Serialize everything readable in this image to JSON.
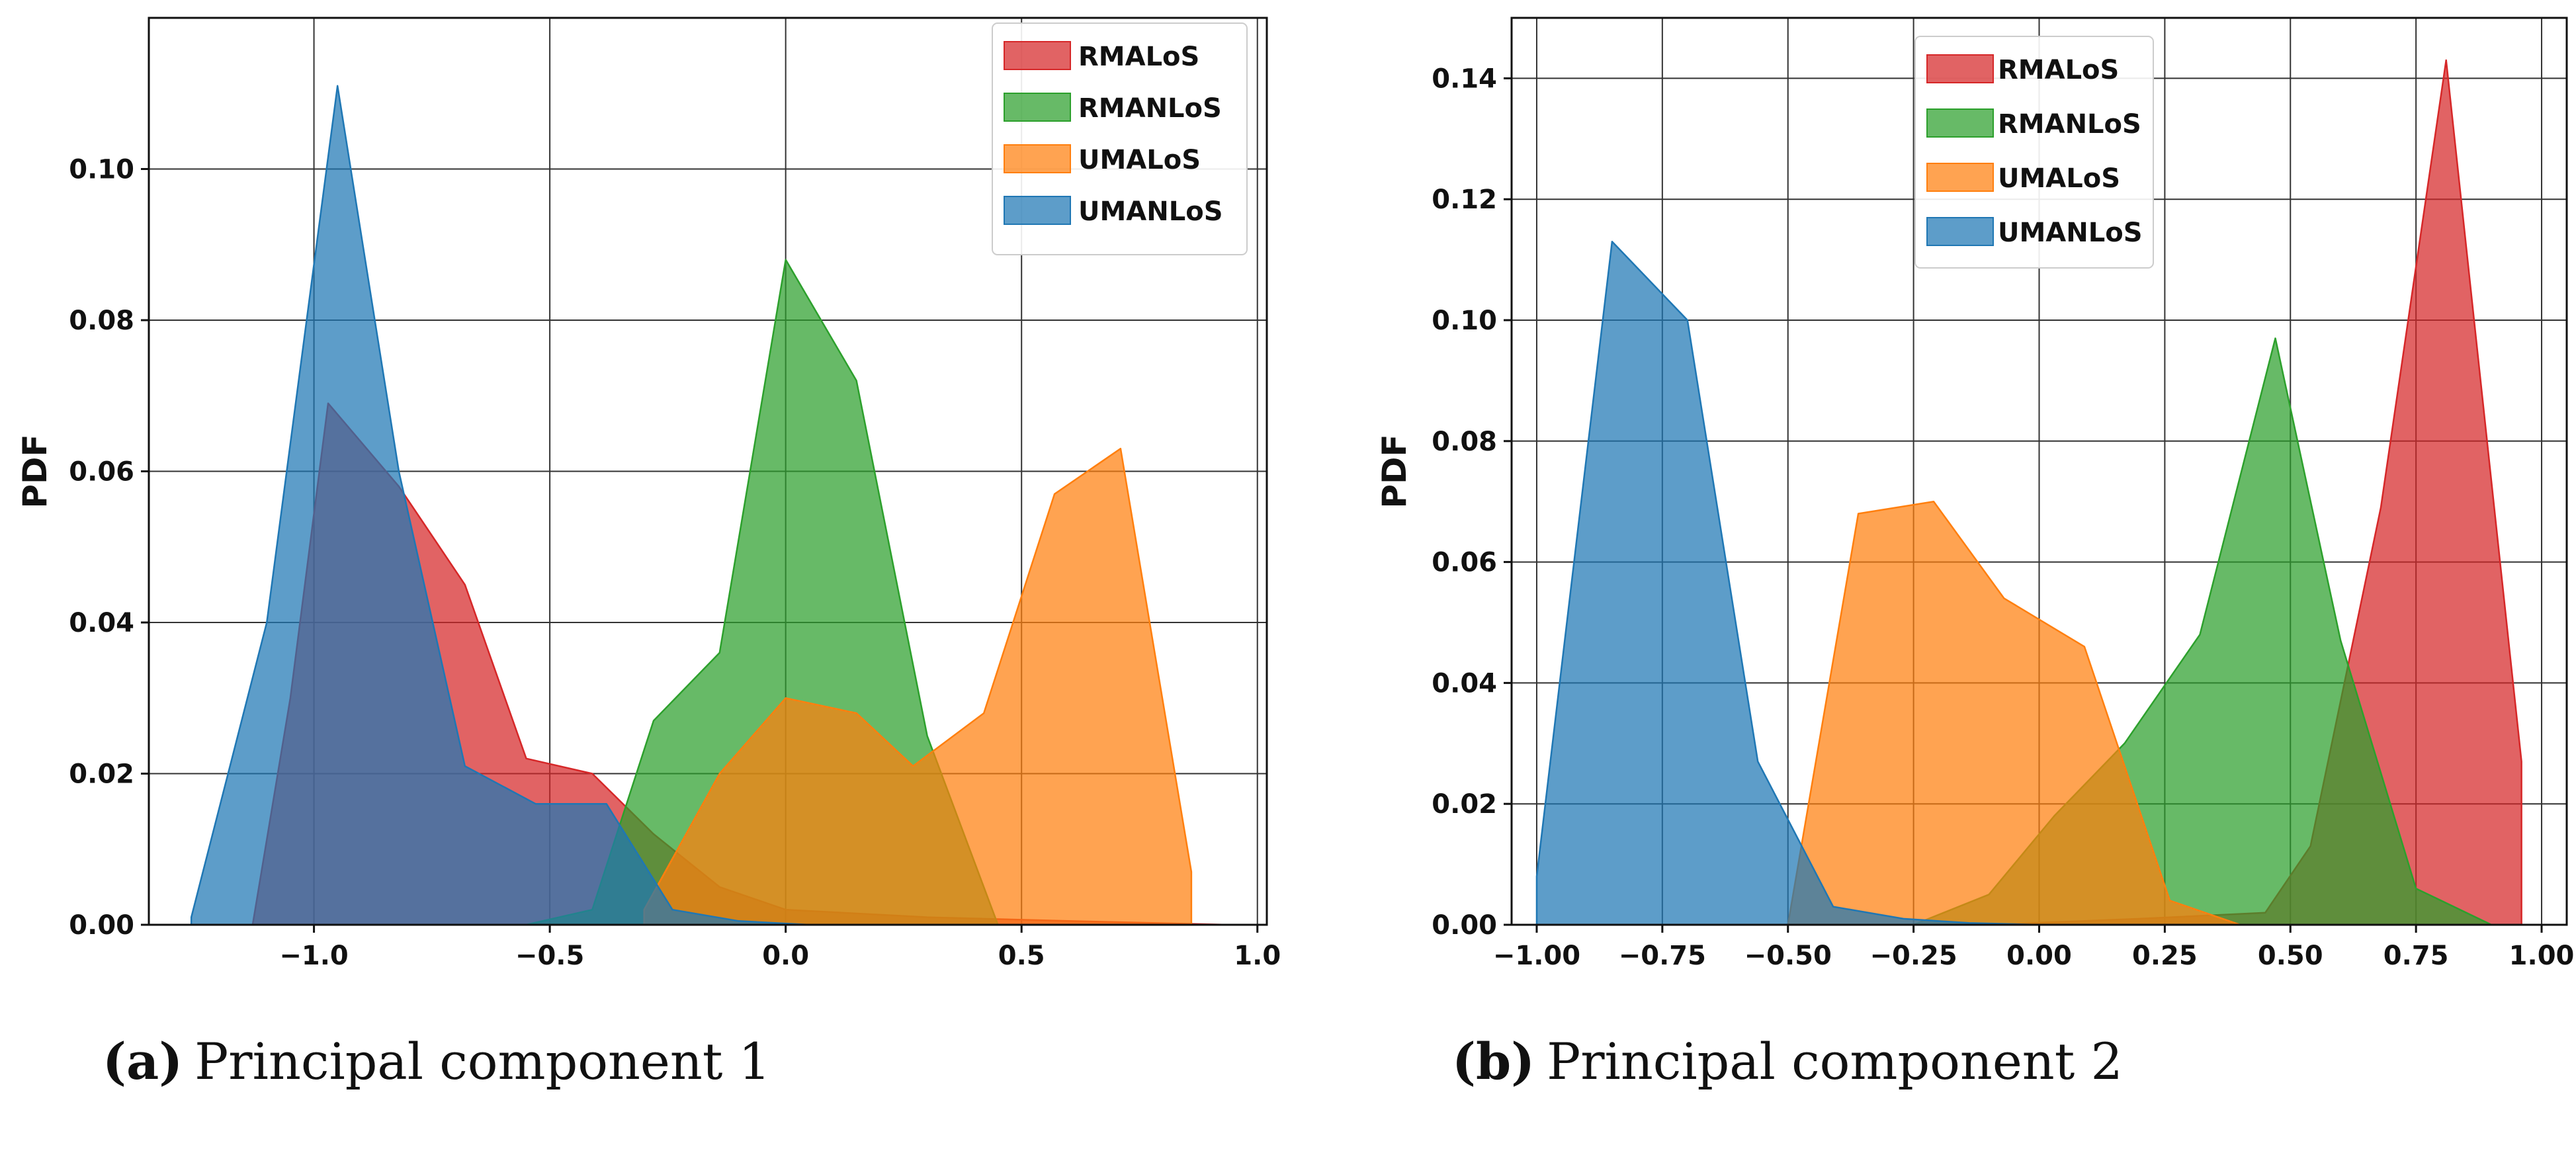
{
  "colors": {
    "RMALoS": "#d62728",
    "RMANLoS": "#2ca02c",
    "UMALoS": "#ff7f0e",
    "UMANLoS": "#1f77b4"
  },
  "captions": [
    {
      "tag": "(a)",
      "text": "Principal component 1"
    },
    {
      "tag": "(b)",
      "text": "Principal component 2"
    }
  ],
  "chart_data": [
    {
      "type": "area",
      "title": "",
      "xlabel": "",
      "ylabel": "PDF",
      "xlim": [
        -1.35,
        1.02
      ],
      "ylim": [
        0,
        0.12
      ],
      "xticks": [
        -1.0,
        -0.5,
        0.0,
        0.5,
        1.0
      ],
      "xtick_labels": [
        "−1.0",
        "−0.5",
        "0.0",
        "0.5",
        "1.0"
      ],
      "yticks": [
        0.0,
        0.02,
        0.04,
        0.06,
        0.08,
        0.1
      ],
      "ytick_labels": [
        "0.00",
        "0.02",
        "0.04",
        "0.06",
        "0.08",
        "0.10"
      ],
      "grid": true,
      "legend_position": "top-right",
      "legend": [
        "RMALoS",
        "RMANLoS",
        "UMALoS",
        "UMANLoS"
      ],
      "series": [
        {
          "name": "RMALoS",
          "x": [
            -1.13,
            -1.05,
            -0.97,
            -0.82,
            -0.68,
            -0.55,
            -0.41,
            -0.28,
            -0.14,
            0.0,
            0.3,
            0.6,
            0.94
          ],
          "y": [
            0.0,
            0.03,
            0.069,
            0.058,
            0.045,
            0.022,
            0.02,
            0.012,
            0.005,
            0.002,
            0.001,
            0.0005,
            0.0
          ]
        },
        {
          "name": "RMANLoS",
          "x": [
            -0.55,
            -0.41,
            -0.28,
            -0.14,
            0.0,
            0.15,
            0.3,
            0.45
          ],
          "y": [
            0.0,
            0.002,
            0.027,
            0.036,
            0.088,
            0.072,
            0.025,
            0.0
          ]
        },
        {
          "name": "UMALoS",
          "x": [
            -0.3,
            -0.14,
            0.0,
            0.15,
            0.27,
            0.42,
            0.57,
            0.71,
            0.86,
            0.86
          ],
          "y": [
            0.002,
            0.02,
            0.03,
            0.028,
            0.021,
            0.028,
            0.057,
            0.063,
            0.007,
            0.0
          ]
        },
        {
          "name": "UMANLoS",
          "x": [
            -1.26,
            -1.26,
            -1.1,
            -0.95,
            -0.82,
            -0.68,
            -0.53,
            -0.38,
            -0.24,
            -0.1,
            0.05
          ],
          "y": [
            0.0,
            0.001,
            0.04,
            0.111,
            0.06,
            0.021,
            0.016,
            0.016,
            0.002,
            0.0005,
            0.0
          ]
        }
      ]
    },
    {
      "type": "area",
      "title": "",
      "xlabel": "",
      "ylabel": "PDF",
      "xlim": [
        -1.05,
        1.05
      ],
      "ylim": [
        0,
        0.15
      ],
      "xticks": [
        -1.0,
        -0.75,
        -0.5,
        -0.25,
        0.0,
        0.25,
        0.5,
        0.75,
        1.0
      ],
      "xtick_labels": [
        "−1.00",
        "−0.75",
        "−0.50",
        "−0.25",
        "0.00",
        "0.25",
        "0.50",
        "0.75",
        "1.00"
      ],
      "yticks": [
        0.0,
        0.02,
        0.04,
        0.06,
        0.08,
        0.1,
        0.12,
        0.14
      ],
      "ytick_labels": [
        "0.00",
        "0.02",
        "0.04",
        "0.06",
        "0.08",
        "0.10",
        "0.12",
        "0.14"
      ],
      "grid": true,
      "legend_position": "top-center",
      "legend": [
        "RMALoS",
        "RMANLoS",
        "UMALoS",
        "UMANLoS"
      ],
      "series": [
        {
          "name": "RMALoS",
          "x": [
            -0.1,
            0.2,
            0.45,
            0.54,
            0.68,
            0.81,
            0.96,
            0.96
          ],
          "y": [
            0.0,
            0.001,
            0.002,
            0.013,
            0.069,
            0.143,
            0.027,
            0.0
          ]
        },
        {
          "name": "RMANLoS",
          "x": [
            -0.25,
            -0.1,
            0.03,
            0.17,
            0.32,
            0.47,
            0.6,
            0.75,
            0.9
          ],
          "y": [
            0.0,
            0.005,
            0.018,
            0.03,
            0.048,
            0.097,
            0.047,
            0.006,
            0.0
          ]
        },
        {
          "name": "UMALoS",
          "x": [
            -0.5,
            -0.36,
            -0.21,
            -0.07,
            0.09,
            0.26,
            0.4
          ],
          "y": [
            0.0,
            0.068,
            0.07,
            0.054,
            0.046,
            0.004,
            0.0
          ]
        },
        {
          "name": "UMANLoS",
          "x": [
            -1.0,
            -1.0,
            -0.85,
            -0.7,
            -0.56,
            -0.41,
            -0.27,
            -0.14,
            0.0
          ],
          "y": [
            0.0,
            0.008,
            0.113,
            0.1,
            0.027,
            0.003,
            0.001,
            0.0003,
            0.0
          ]
        }
      ]
    }
  ]
}
